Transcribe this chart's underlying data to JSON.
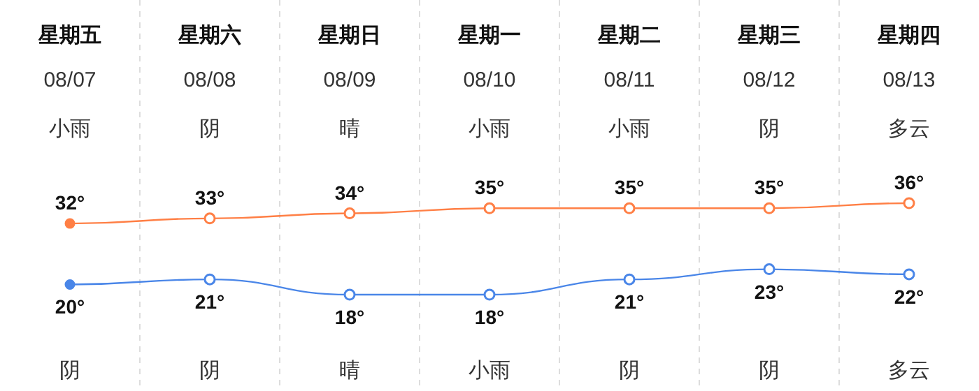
{
  "chart_data": {
    "type": "line",
    "categories": [
      "星期五",
      "星期六",
      "星期日",
      "星期一",
      "星期二",
      "星期三",
      "星期四"
    ],
    "series": [
      {
        "color": "#ff7f45",
        "values": [
          32,
          33,
          34,
          35,
          35,
          35,
          36
        ],
        "value_labels": [
          "32°",
          "33°",
          "34°",
          "35°",
          "35°",
          "35°",
          "36°"
        ]
      },
      {
        "color": "#4a86e8",
        "values": [
          20,
          21,
          18,
          18,
          21,
          23,
          22
        ],
        "value_labels": [
          "20°",
          "21°",
          "18°",
          "18°",
          "21°",
          "23°",
          "22°"
        ]
      }
    ],
    "annotations": [
      "08/07",
      "08/08",
      "08/09",
      "08/10",
      "08/11",
      "08/12",
      "08/13",
      "小雨",
      "阴",
      "晴",
      "小雨",
      "小雨",
      "阴",
      "多云",
      "阴",
      "阴",
      "晴",
      "小雨",
      "阴",
      "阴",
      "多云"
    ],
    "marker": "circle"
  }
}
